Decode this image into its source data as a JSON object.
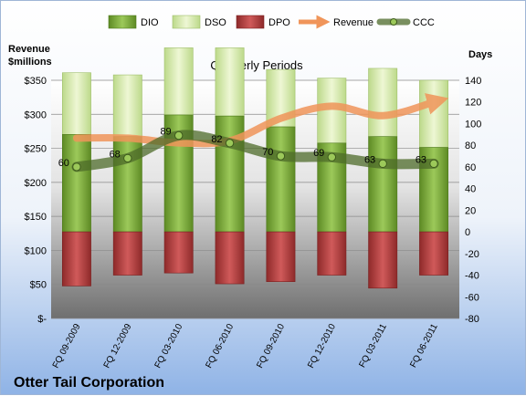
{
  "chart_data": {
    "type": "bar",
    "title": "Quarterly Periods",
    "company": "Otter Tail Corporation",
    "y_left_label_line1": "Revenue",
    "y_left_label_line2": "$millions",
    "y_right_label": "Days",
    "categories": [
      "FQ 09-2009",
      "FQ 12-2009",
      "FQ 03-2010",
      "FQ 06-2010",
      "FQ 09-2010",
      "FQ 12-2010",
      "FQ 03-2011",
      "FQ 06-2011"
    ],
    "y_left": {
      "min": 0,
      "max": 350,
      "step": 50,
      "tick_labels": [
        "$-",
        "$50",
        "$100",
        "$150",
        "$200",
        "$250",
        "$300",
        "$350"
      ]
    },
    "y_right": {
      "min": -80,
      "max": 140,
      "step": 20
    },
    "series": [
      {
        "name": "DIO",
        "type": "stacked-bar",
        "values": [
          90,
          88,
          108,
          107,
          97,
          82,
          88,
          78
        ],
        "color": "#7aa83c"
      },
      {
        "name": "DSO",
        "type": "stacked-bar",
        "values": [
          57,
          57,
          62,
          63,
          53,
          60,
          63,
          62
        ],
        "color": "#d6e8a8"
      },
      {
        "name": "DPO",
        "type": "negative-bar",
        "values": [
          -50,
          -40,
          -38,
          -48,
          -46,
          -40,
          -52,
          -40
        ],
        "color": "#b83a3a"
      },
      {
        "name": "Revenue",
        "type": "line",
        "values": [
          265,
          265,
          258,
          261,
          294,
          312,
          298,
          318
        ],
        "color": "#f0955a"
      },
      {
        "name": "CCC",
        "type": "line",
        "values": [
          60,
          68,
          89,
          82,
          70,
          69,
          63,
          63
        ],
        "color": "#4d6b2a"
      }
    ],
    "legend_position": "top",
    "grid": true
  }
}
